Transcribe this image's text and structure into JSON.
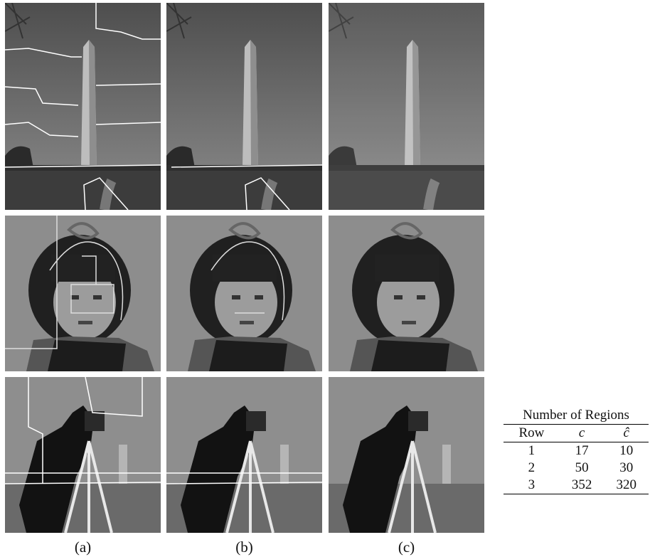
{
  "panel_labels": [
    "(a)",
    "(b)",
    "(c)"
  ],
  "table": {
    "title": "Number of Regions",
    "header": [
      "Row",
      "c",
      "ĉ"
    ],
    "rows": [
      [
        1,
        17,
        10
      ],
      [
        2,
        50,
        30
      ],
      [
        3,
        352,
        320
      ]
    ]
  }
}
